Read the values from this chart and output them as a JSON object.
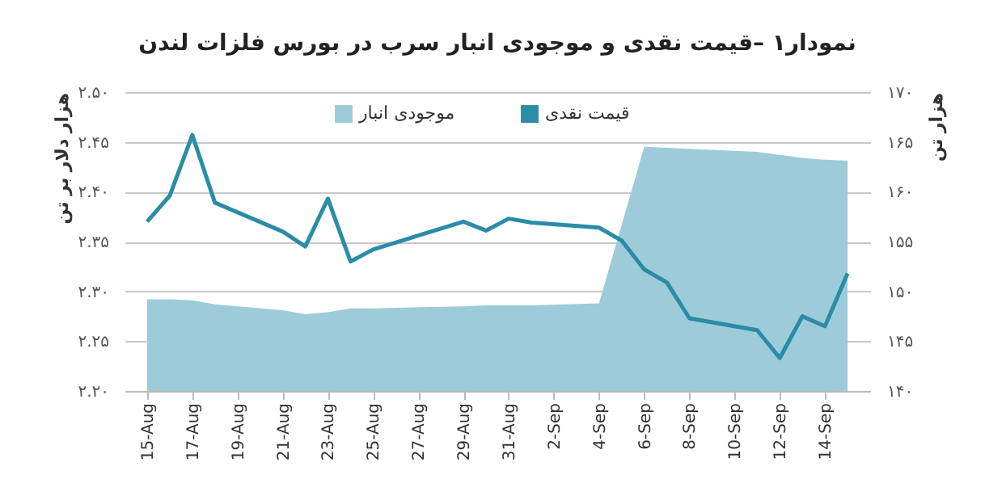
{
  "chart_data": {
    "type": "line",
    "title": "نمودار۱ –قیمت نقدی و موجودی انبار سرب در بورس فلزات لندن",
    "ylabel": "هزار دلار بر تن",
    "y2label": "هزار تن",
    "xlim": [
      "--08-14",
      "--09-16"
    ],
    "xticks": [
      {
        "value": "--08-15",
        "label": "15-Aug"
      },
      {
        "value": "--08-17",
        "label": "17-Aug"
      },
      {
        "value": "--08-19",
        "label": "19-Aug"
      },
      {
        "value": "--08-21",
        "label": "21-Aug"
      },
      {
        "value": "--08-23",
        "label": "23-Aug"
      },
      {
        "value": "--08-25",
        "label": "25-Aug"
      },
      {
        "value": "--08-27",
        "label": "27-Aug"
      },
      {
        "value": "--08-29",
        "label": "29-Aug"
      },
      {
        "value": "--08-31",
        "label": "31-Aug"
      },
      {
        "value": "--09-02",
        "label": "2-Sep"
      },
      {
        "value": "--09-04",
        "label": "4-Sep"
      },
      {
        "value": "--09-06",
        "label": "6-Sep"
      },
      {
        "value": "--09-08",
        "label": "8-Sep"
      },
      {
        "value": "--09-10",
        "label": "10-Sep"
      },
      {
        "value": "--09-12",
        "label": "12-Sep"
      },
      {
        "value": "--09-14",
        "label": "14-Sep"
      }
    ],
    "ylim": [
      2.2,
      2.5
    ],
    "yticks": [
      {
        "value": 2.2,
        "label": "۲.۲۰"
      },
      {
        "value": 2.25,
        "label": "۲.۲۵"
      },
      {
        "value": 2.3,
        "label": "۲.۳۰"
      },
      {
        "value": 2.35,
        "label": "۲.۳۵"
      },
      {
        "value": 2.4,
        "label": "۲.۴۰"
      },
      {
        "value": 2.45,
        "label": "۲.۴۵"
      },
      {
        "value": 2.5,
        "label": "۲.۵۰"
      }
    ],
    "y2lim": [
      140,
      170
    ],
    "y2ticks": [
      {
        "value": 140,
        "label": "۱۴۰"
      },
      {
        "value": 145,
        "label": "۱۴۵"
      },
      {
        "value": 150,
        "label": "۱۵۰"
      },
      {
        "value": 155,
        "label": "۱۵۵"
      },
      {
        "value": 160,
        "label": "۱۶۰"
      },
      {
        "value": 165,
        "label": "۱۶۵"
      },
      {
        "value": 170,
        "label": "۱۷۰"
      }
    ],
    "grid": "y",
    "legend": "top",
    "marker": "none",
    "line_style": "solid",
    "series": [
      {
        "name": "موجودی انبار",
        "type": "area",
        "axis": "y2",
        "color": "#9dcbd9",
        "x": [
          "--08-15",
          "--08-16",
          "--08-17",
          "--08-18",
          "--08-21",
          "--08-22",
          "--08-23",
          "--08-24",
          "--08-25",
          "--08-29",
          "--08-30",
          "--08-31",
          "--09-01",
          "--09-04",
          "--09-06",
          "--09-07",
          "--09-08",
          "--09-11",
          "--09-12",
          "--09-13",
          "--09-14",
          "--09-15"
        ],
        "values": [
          149.2,
          149.2,
          149.1,
          148.7,
          148.1,
          147.7,
          147.9,
          148.3,
          148.3,
          148.5,
          148.6,
          148.6,
          148.6,
          148.8,
          164.5,
          164.4,
          164.3,
          164.0,
          163.7,
          163.4,
          163.2,
          163.1
        ]
      },
      {
        "name": "قیمت نقدی",
        "type": "line",
        "color": "#2b8ca8",
        "x": [
          "--08-15",
          "--08-16",
          "--08-17",
          "--08-18",
          "--08-21",
          "--08-22",
          "--08-23",
          "--08-24",
          "--08-25",
          "--08-29",
          "--08-30",
          "--08-31",
          "--09-01",
          "--09-04",
          "--09-05",
          "--09-06",
          "--09-07",
          "--09-08",
          "--09-11",
          "--09-12",
          "--09-13",
          "--09-14",
          "--09-15"
        ],
        "values": [
          2.37,
          2.396,
          2.457,
          2.389,
          2.36,
          2.345,
          2.393,
          2.33,
          2.342,
          2.37,
          2.361,
          2.373,
          2.369,
          2.364,
          2.351,
          2.322,
          2.309,
          2.273,
          2.261,
          2.233,
          2.275,
          2.265,
          2.318
        ]
      }
    ]
  }
}
